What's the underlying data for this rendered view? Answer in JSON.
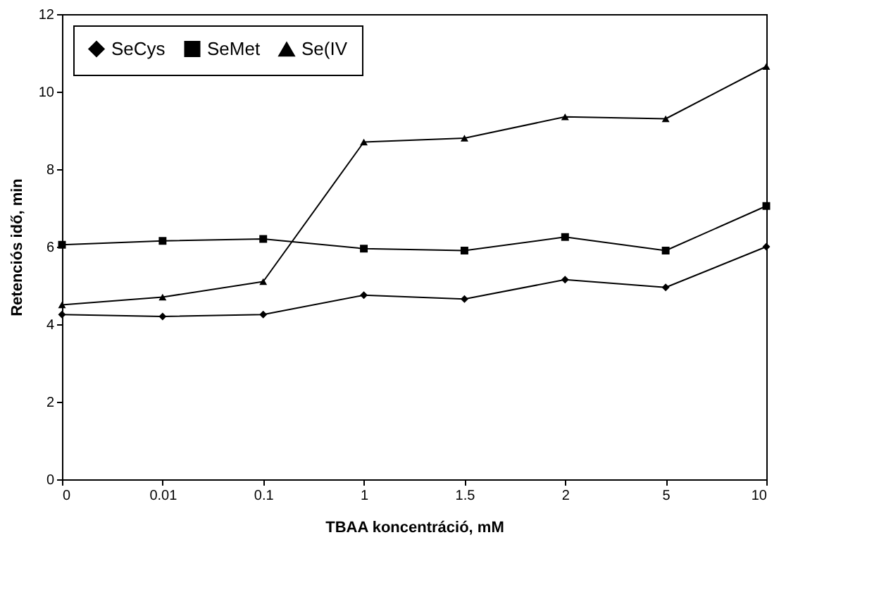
{
  "chart_data": {
    "type": "line",
    "xlabel": "TBAA koncentráció, mM",
    "ylabel": "Retenciós idő, min",
    "categories": [
      "0",
      "0.01",
      "0.1",
      "1",
      "1.5",
      "2",
      "5",
      "10"
    ],
    "series": [
      {
        "name": "SeCys",
        "color": "#000000",
        "marker": "diamond",
        "values": [
          4.25,
          4.2,
          4.25,
          4.75,
          4.65,
          5.15,
          4.95,
          6.0
        ]
      },
      {
        "name": "SeMet",
        "color": "#000000",
        "marker": "square",
        "values": [
          6.05,
          6.15,
          6.2,
          5.95,
          5.9,
          6.25,
          5.9,
          7.05
        ]
      },
      {
        "name": "Se(IV",
        "color": "#000000",
        "marker": "triangle",
        "values": [
          4.5,
          4.7,
          5.1,
          8.7,
          8.8,
          9.35,
          9.3,
          10.65
        ]
      }
    ],
    "ylim": [
      0,
      12
    ],
    "yticks": [
      0,
      2,
      4,
      6,
      8,
      10,
      12
    ],
    "grid": false,
    "legend": "top left",
    "line_style": "solid"
  }
}
